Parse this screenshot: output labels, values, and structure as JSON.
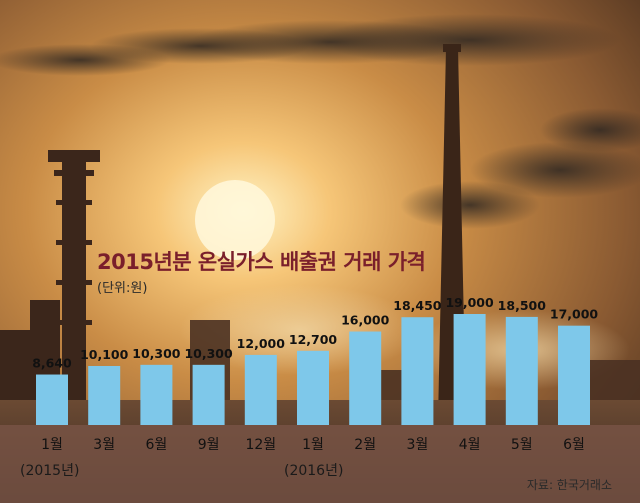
{
  "chart_data": {
    "type": "bar",
    "title": "2015년분 온실가스 배출권 거래 가격",
    "unit_note": "(단위:원)",
    "source": "자료: 한국거래소",
    "categories": [
      "1월",
      "3월",
      "6월",
      "9월",
      "12월",
      "1월",
      "2월",
      "3월",
      "4월",
      "5월",
      "6월"
    ],
    "values": [
      8640,
      10100,
      10300,
      10300,
      12000,
      12700,
      16000,
      18450,
      19000,
      18500,
      17000
    ],
    "value_labels": [
      "8,640",
      "10,100",
      "10,300",
      "10,300",
      "12,000",
      "12,700",
      "16,000",
      "18,450",
      "19,000",
      "18,500",
      "17,000"
    ],
    "year_labels": [
      "(2015년)",
      "(2016년)"
    ],
    "ylim": [
      0,
      19000
    ],
    "grid": false,
    "legend": "none",
    "bar_color": "#7ec8ea",
    "title_color": "#7a1f2b",
    "axis_band_color": "#7a5446"
  }
}
